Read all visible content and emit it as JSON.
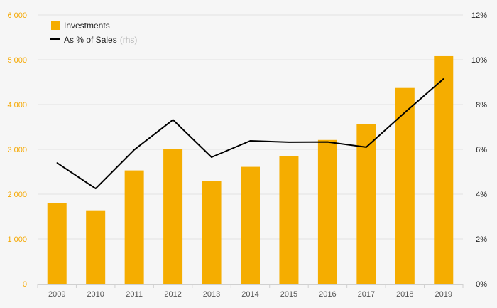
{
  "chart_data": {
    "type": "bar+line",
    "categories": [
      "2009",
      "2010",
      "2011",
      "2012",
      "2013",
      "2014",
      "2015",
      "2016",
      "2017",
      "2018",
      "2019"
    ],
    "series": [
      {
        "name": "Investments",
        "type": "bar",
        "axis": "left",
        "color": "#f5ad00",
        "values": [
          1800,
          1640,
          2530,
          3010,
          2300,
          2610,
          2850,
          3210,
          3560,
          4370,
          5080
        ]
      },
      {
        "name": "As % of Sales",
        "name_suffix": "(rhs)",
        "type": "line",
        "axis": "right",
        "color": "#000000",
        "values": [
          5.4,
          4.25,
          5.98,
          7.32,
          5.65,
          6.38,
          6.32,
          6.33,
          6.1,
          7.65,
          9.15
        ]
      }
    ],
    "y_left": {
      "range": [
        0,
        6000
      ],
      "ticks": [
        0,
        1000,
        2000,
        3000,
        4000,
        5000,
        6000
      ],
      "tick_labels": [
        "0",
        "1 000",
        "2 000",
        "3 000",
        "4 000",
        "5 000",
        "6 000"
      ],
      "color": "#f5a800"
    },
    "y_right": {
      "range": [
        0,
        12
      ],
      "ticks": [
        0,
        2,
        4,
        6,
        8,
        10,
        12
      ],
      "tick_labels": [
        "0%",
        "2%",
        "4%",
        "6%",
        "8%",
        "10%",
        "12%"
      ]
    },
    "grid": "horizontal",
    "legend": "top-left"
  }
}
